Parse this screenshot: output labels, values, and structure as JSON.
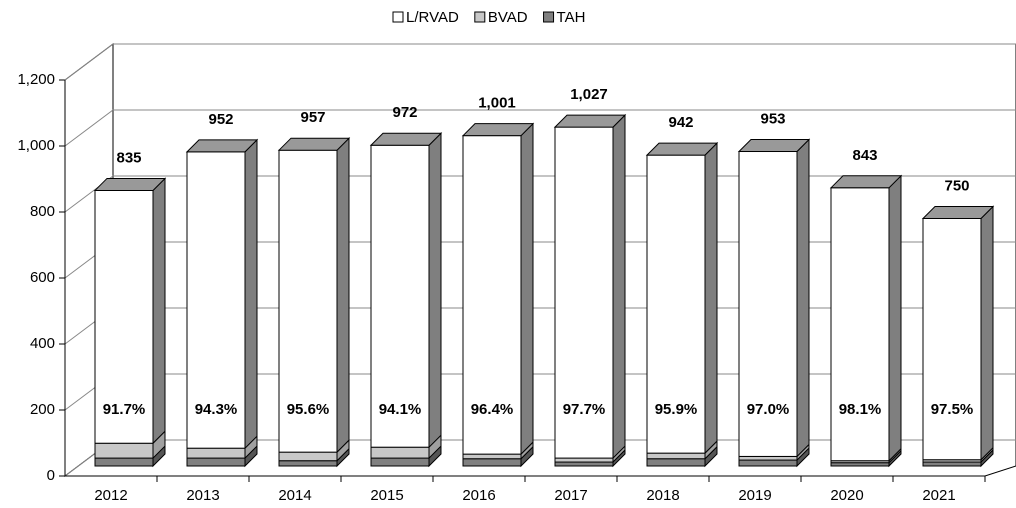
{
  "chart_data": {
    "type": "bar3d_stacked",
    "categories": [
      "2012",
      "2013",
      "2014",
      "2015",
      "2016",
      "2017",
      "2018",
      "2019",
      "2020",
      "2021"
    ],
    "series": [
      {
        "name": "L/RVAD",
        "color": "#ffffff",
        "values": [
          766,
          898,
          915,
          915,
          965,
          1003,
          903,
          924,
          827,
          731
        ]
      },
      {
        "name": "BVAD",
        "color": "#c8c8c8",
        "values": [
          45,
          30,
          26,
          33,
          14,
          12,
          17,
          11,
          6,
          7
        ]
      },
      {
        "name": "TAH",
        "color": "#808080",
        "values": [
          24,
          24,
          16,
          24,
          22,
          12,
          22,
          18,
          10,
          12
        ]
      }
    ],
    "total_labels": [
      "835",
      "952",
      "957",
      "972",
      "1,001",
      "1,027",
      "942",
      "953",
      "843",
      "750"
    ],
    "share_labels": [
      "91.7%",
      "94.3%",
      "95.6%",
      "94.1%",
      "96.4%",
      "97.7%",
      "95.9%",
      "97.0%",
      "98.1%",
      "97.5%"
    ],
    "ylim": [
      0,
      1200
    ],
    "yticks": [
      0,
      200,
      400,
      600,
      800,
      {
        "value": 1000,
        "label": "1,000"
      },
      {
        "value": 1200,
        "label": "1,200"
      }
    ],
    "grid": true,
    "legend": "top"
  }
}
